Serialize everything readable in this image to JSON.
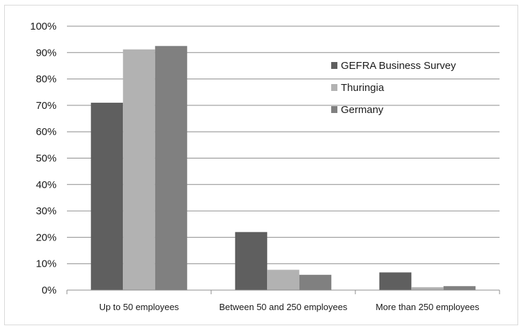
{
  "chart_data": {
    "type": "bar",
    "title": "",
    "xlabel": "",
    "ylabel": "",
    "categories": [
      "Up to 50 employees",
      "Between 50 and 250 employees",
      "More than 250 employees"
    ],
    "series": [
      {
        "name": "GEFRA Business Survey",
        "color": "#5f5f5f",
        "values": [
          71,
          22,
          6.7
        ]
      },
      {
        "name": "Thuringia",
        "color": "#b2b2b2",
        "values": [
          91.2,
          7.7,
          1.1
        ]
      },
      {
        "name": "Germany",
        "color": "#808080",
        "values": [
          92.5,
          5.8,
          1.5
        ]
      }
    ],
    "ylim": [
      0,
      100
    ],
    "yticks": [
      "0%",
      "10%",
      "20%",
      "30%",
      "40%",
      "50%",
      "60%",
      "70%",
      "80%",
      "90%",
      "100%"
    ],
    "grid": true,
    "legend_position": "top-right"
  }
}
